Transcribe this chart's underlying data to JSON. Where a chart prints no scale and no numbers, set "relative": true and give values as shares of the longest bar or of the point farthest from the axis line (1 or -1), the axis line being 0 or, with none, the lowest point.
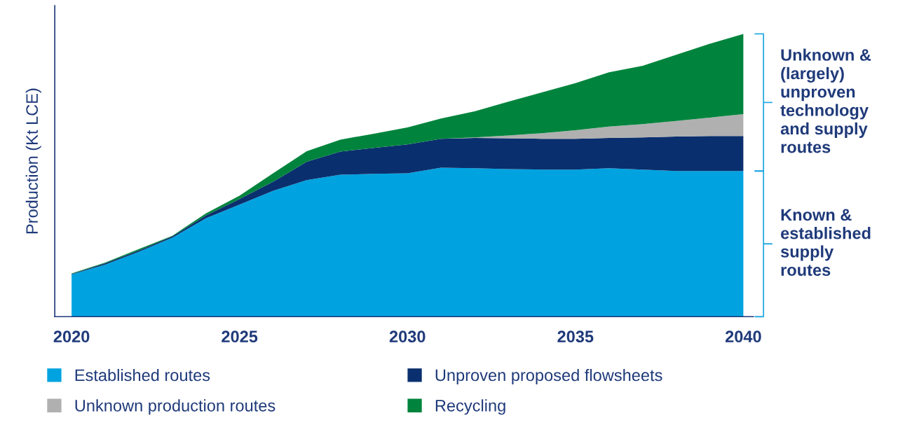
{
  "chart_data": {
    "type": "area",
    "stacked": true,
    "relative": true,
    "ylabel": "Production (Kt LCE)",
    "x": [
      2020,
      2021,
      2022,
      2023,
      2024,
      2025,
      2026,
      2027,
      2028,
      2029,
      2030,
      2031,
      2032,
      2033,
      2034,
      2035,
      2036,
      2037,
      2038,
      2039,
      2040
    ],
    "xlim": [
      2019.5,
      2040.3
    ],
    "xticks": [
      2020,
      2025,
      2030,
      2035,
      2040
    ],
    "series": [
      {
        "name": "Established routes",
        "color": "#00a3e0",
        "values": [
          0.149,
          0.184,
          0.229,
          0.279,
          0.348,
          0.396,
          0.445,
          0.483,
          0.502,
          0.505,
          0.507,
          0.527,
          0.525,
          0.522,
          0.52,
          0.52,
          0.525,
          0.52,
          0.515,
          0.515,
          0.515
        ]
      },
      {
        "name": "Unproven proposed flowsheets",
        "color": "#0a2f6e",
        "values": [
          0.002,
          0.005,
          0.005,
          0.005,
          0.01,
          0.02,
          0.032,
          0.065,
          0.082,
          0.092,
          0.102,
          0.102,
          0.107,
          0.109,
          0.109,
          0.109,
          0.107,
          0.114,
          0.122,
          0.124,
          0.124
        ]
      },
      {
        "name": "Unknown production routes",
        "color": "#b0b0b0",
        "values": [
          0,
          0,
          0,
          0,
          0,
          0,
          0,
          0,
          0,
          0,
          0,
          0,
          0.002,
          0.01,
          0.02,
          0.03,
          0.04,
          0.047,
          0.055,
          0.065,
          0.077
        ]
      },
      {
        "name": "Recycling",
        "color": "#00843d",
        "values": [
          0.002,
          0.002,
          0.005,
          0.002,
          0.007,
          0.012,
          0.03,
          0.037,
          0.042,
          0.05,
          0.06,
          0.072,
          0.092,
          0.119,
          0.144,
          0.167,
          0.192,
          0.206,
          0.234,
          0.261,
          0.284
        ]
      }
    ],
    "legend": "bottom",
    "grid": false,
    "annotations": [
      "Unknown &\n(largely)\nunproven\ntechnology\nand supply\nroutes",
      "Known &\nestablished\nsupply\nroutes"
    ]
  }
}
